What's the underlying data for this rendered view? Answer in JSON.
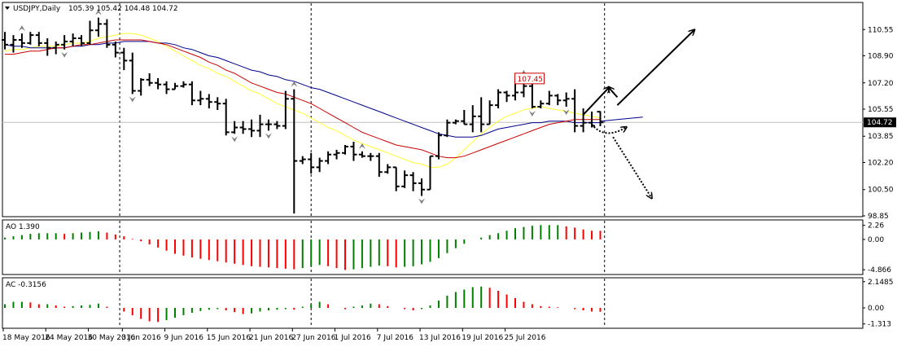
{
  "colors": {
    "background": "#ffffff",
    "frame": "#000000",
    "bar": "#000000",
    "ma_fast": "#ffff33",
    "ma_mid": "#cc0000",
    "ma_slow": "#00008b",
    "ao_up": "#008000",
    "ao_down": "#ff0000",
    "fractal": "#808080",
    "price_label_bg": "#000000",
    "price_label_text": "#ffffff",
    "marker_label": "#cc0000",
    "current_line": "#c0c0c0",
    "arrow": "#000000"
  },
  "chart_data": [
    {
      "type": "ohlc",
      "title": "USDJPY,Daily",
      "ohlc_readout": "105.39 105.42 104.48 104.72",
      "ylim": [
        98.85,
        112.2
      ],
      "y_ticks": [
        "110.55",
        "108.90",
        "107.20",
        "105.55",
        "103.85",
        "102.20",
        "100.50",
        "98.85"
      ],
      "current_price": "104.72",
      "current_value": 104.72,
      "marker_label": "107.45",
      "marker_value": 107.45,
      "marker_bar_index": 59,
      "x_ticks": [
        {
          "label": "18 May 2016",
          "index": 0
        },
        {
          "label": "24 May 2016",
          "index": 5
        },
        {
          "label": "30 May 2016",
          "index": 10
        },
        {
          "label": "3 Jun 2016",
          "index": 14
        },
        {
          "label": "9 Jun 2016",
          "index": 19
        },
        {
          "label": "15 Jun 2016",
          "index": 24
        },
        {
          "label": "21 Jun 2016",
          "index": 29
        },
        {
          "label": "27 Jun 2016",
          "index": 34
        },
        {
          "label": "1 Jul 2016",
          "index": 39
        },
        {
          "label": "7 Jul 2016",
          "index": 44
        },
        {
          "label": "13 Jul 2016",
          "index": 49
        },
        {
          "label": "19 Jul 2016",
          "index": 54
        },
        {
          "label": "25 Jul 2016",
          "index": 59
        }
      ],
      "bars": [
        [
          109.9,
          110.4,
          109.3,
          109.6
        ],
        [
          109.6,
          110.2,
          109.1,
          109.9
        ],
        [
          109.9,
          110.3,
          109.4,
          109.7
        ],
        [
          109.7,
          110.4,
          109.6,
          110.2
        ],
        [
          110.2,
          110.4,
          109.5,
          109.7
        ],
        [
          109.7,
          110.0,
          108.9,
          109.4
        ],
        [
          109.4,
          109.8,
          109.0,
          109.6
        ],
        [
          109.6,
          110.2,
          109.3,
          109.8
        ],
        [
          109.8,
          110.3,
          109.5,
          110.0
        ],
        [
          110.0,
          110.2,
          109.5,
          109.7
        ],
        [
          109.7,
          111.1,
          109.6,
          110.5
        ],
        [
          110.5,
          111.3,
          110.1,
          110.9
        ],
        [
          110.9,
          111.2,
          109.4,
          109.6
        ],
        [
          109.6,
          109.8,
          108.8,
          109.1
        ],
        [
          109.1,
          109.4,
          108.0,
          108.6
        ],
        [
          108.6,
          109.1,
          106.5,
          106.7
        ],
        [
          106.7,
          107.5,
          106.4,
          107.4
        ],
        [
          107.4,
          107.8,
          107.0,
          107.2
        ],
        [
          107.2,
          107.5,
          106.8,
          107.1
        ],
        [
          107.1,
          107.3,
          106.5,
          106.8
        ],
        [
          106.8,
          107.2,
          106.8,
          107.0
        ],
        [
          107.0,
          107.3,
          106.9,
          107.1
        ],
        [
          107.1,
          107.3,
          105.8,
          106.1
        ],
        [
          106.1,
          106.7,
          105.8,
          106.2
        ],
        [
          106.2,
          106.5,
          105.6,
          106.0
        ],
        [
          106.0,
          106.3,
          105.5,
          105.9
        ],
        [
          105.9,
          106.2,
          103.9,
          104.1
        ],
        [
          104.1,
          104.8,
          104.0,
          104.4
        ],
        [
          104.4,
          104.8,
          104.0,
          104.3
        ],
        [
          104.3,
          104.9,
          103.8,
          104.2
        ],
        [
          104.2,
          105.2,
          103.8,
          104.6
        ],
        [
          104.6,
          104.9,
          104.2,
          104.6
        ],
        [
          104.6,
          104.8,
          104.3,
          104.5
        ],
        [
          104.5,
          106.7,
          104.3,
          106.2
        ],
        [
          106.2,
          106.8,
          99.0,
          102.3
        ],
        [
          102.3,
          102.6,
          102.1,
          102.4
        ],
        [
          102.4,
          102.8,
          101.5,
          101.9
        ],
        [
          101.9,
          102.5,
          101.6,
          102.3
        ],
        [
          102.3,
          102.9,
          102.1,
          102.7
        ],
        [
          102.7,
          103.0,
          102.4,
          102.8
        ],
        [
          102.8,
          103.3,
          102.7,
          103.2
        ],
        [
          103.2,
          103.5,
          102.3,
          102.7
        ],
        [
          102.7,
          102.9,
          102.5,
          102.6
        ],
        [
          102.6,
          102.8,
          102.3,
          102.6
        ],
        [
          102.6,
          102.8,
          101.3,
          101.6
        ],
        [
          101.6,
          102.1,
          101.5,
          101.9
        ],
        [
          101.9,
          101.9,
          100.4,
          100.7
        ],
        [
          100.7,
          101.7,
          100.6,
          101.4
        ],
        [
          101.4,
          101.6,
          100.4,
          100.9
        ],
        [
          100.9,
          101.2,
          100.1,
          100.5
        ],
        [
          100.5,
          102.6,
          100.5,
          102.6
        ],
        [
          102.6,
          104.1,
          102.4,
          103.9
        ],
        [
          103.9,
          104.9,
          103.8,
          104.7
        ],
        [
          104.7,
          104.9,
          104.6,
          104.8
        ],
        [
          104.8,
          105.5,
          104.6,
          104.6
        ],
        [
          104.6,
          105.8,
          104.1,
          105.1
        ],
        [
          105.1,
          106.3,
          104.1,
          104.6
        ],
        [
          104.6,
          106.1,
          104.6,
          105.8
        ],
        [
          105.8,
          106.8,
          105.6,
          106.6
        ],
        [
          106.6,
          106.7,
          106.0,
          106.4
        ],
        [
          106.4,
          107.3,
          106.1,
          106.6
        ],
        [
          106.6,
          107.5,
          106.3,
          107.0
        ],
        [
          107.0,
          107.7,
          105.6,
          105.7
        ],
        [
          105.7,
          106.1,
          105.6,
          105.9
        ],
        [
          105.9,
          106.7,
          105.8,
          106.4
        ],
        [
          106.4,
          106.5,
          105.8,
          106.1
        ],
        [
          106.1,
          106.6,
          105.7,
          106.2
        ],
        [
          106.2,
          106.8,
          104.1,
          104.5
        ],
        [
          104.5,
          105.6,
          104.1,
          104.7
        ],
        [
          104.7,
          105.4,
          104.4,
          104.5
        ],
        [
          105.39,
          105.42,
          104.48,
          104.72
        ]
      ],
      "ma_fast": [
        109.2,
        109.3,
        109.3,
        109.4,
        109.5,
        109.5,
        109.5,
        109.6,
        109.7,
        109.7,
        109.8,
        110.0,
        110.1,
        110.2,
        110.3,
        110.3,
        110.2,
        110.0,
        109.8,
        109.5,
        109.2,
        108.9,
        108.6,
        108.3,
        108.1,
        107.8,
        107.6,
        107.3,
        107.0,
        106.7,
        106.5,
        106.2,
        105.9,
        105.7,
        105.5,
        105.3,
        105.0,
        104.7,
        104.4,
        104.2,
        103.9,
        103.6,
        103.4,
        103.2,
        103.0,
        102.8,
        102.6,
        102.4,
        102.2,
        102.1,
        101.9,
        101.9,
        102.1,
        102.5,
        103.0,
        103.5,
        104.0,
        104.4,
        104.8,
        105.1,
        105.3,
        105.5,
        105.6,
        105.7,
        105.6,
        105.5,
        105.4,
        105.3,
        105.2,
        105.1,
        105.0
      ],
      "ma_mid": [
        109.0,
        109.0,
        109.1,
        109.2,
        109.2,
        109.3,
        109.4,
        109.4,
        109.5,
        109.6,
        109.6,
        109.7,
        109.8,
        109.9,
        109.9,
        109.9,
        109.9,
        109.8,
        109.7,
        109.6,
        109.4,
        109.2,
        109.0,
        108.8,
        108.5,
        108.3,
        108.0,
        107.8,
        107.5,
        107.2,
        107.0,
        106.8,
        106.6,
        106.5,
        106.3,
        106.1,
        105.9,
        105.6,
        105.3,
        105.0,
        104.7,
        104.4,
        104.1,
        103.9,
        103.7,
        103.5,
        103.3,
        103.2,
        103.1,
        103.0,
        102.8,
        102.6,
        102.5,
        102.5,
        102.6,
        102.8,
        103.0,
        103.2,
        103.4,
        103.6,
        103.8,
        104.0,
        104.2,
        104.4,
        104.6,
        104.7,
        104.8,
        104.9,
        104.9,
        104.9,
        104.9
      ],
      "ma_slow": [
        109.6,
        109.5,
        109.5,
        109.4,
        109.4,
        109.4,
        109.4,
        109.4,
        109.5,
        109.5,
        109.6,
        109.6,
        109.7,
        109.7,
        109.8,
        109.8,
        109.8,
        109.8,
        109.7,
        109.7,
        109.6,
        109.4,
        109.3,
        109.1,
        108.9,
        108.8,
        108.6,
        108.4,
        108.2,
        108.0,
        107.9,
        107.7,
        107.6,
        107.4,
        107.3,
        107.1,
        106.9,
        106.8,
        106.6,
        106.4,
        106.2,
        106.0,
        105.8,
        105.6,
        105.4,
        105.2,
        105.0,
        104.8,
        104.6,
        104.4,
        104.2,
        104.0,
        103.9,
        103.8,
        103.8,
        103.8,
        103.9,
        104.1,
        104.3,
        104.4,
        104.5,
        104.6,
        104.7,
        104.7,
        104.8,
        104.8,
        104.8,
        104.7,
        104.7,
        104.7,
        104.7
      ],
      "ma_projection": [
        104.8,
        104.85,
        104.9,
        104.95,
        105.0,
        105.05
      ],
      "fractals_up": [
        2,
        11,
        34,
        42,
        61
      ],
      "fractals_down": [
        7,
        15,
        27,
        31,
        49,
        62,
        66
      ],
      "projection_arrows": [
        {
          "from": [
            68,
            105.2
          ],
          "to": [
            71,
            106.9
          ],
          "style": "solid"
        },
        {
          "from": [
            72,
            106.3
          ],
          "to": [
            71,
            106.9
          ],
          "style": "solid"
        },
        {
          "from": [
            72,
            105.8
          ],
          "to": [
            81,
            110.5
          ],
          "style": "solid"
        },
        {
          "from": [
            69,
            104.6
          ],
          "to": [
            73,
            104.4
          ],
          "style": "dotted",
          "via": [
            70.5,
            103.6
          ]
        },
        {
          "from": [
            71.5,
            103.8
          ],
          "to": [
            76,
            100.0
          ],
          "style": "dotted"
        }
      ],
      "vertical_lines": [
        13.5,
        36,
        70.5
      ]
    },
    {
      "type": "bar",
      "title": "AO 1.390",
      "ylim": [
        -5.5,
        3.0
      ],
      "y_ticks": [
        "2.26",
        "0.00",
        "-4.866"
      ],
      "values": [
        0.3,
        0.5,
        0.7,
        0.9,
        1.0,
        1.0,
        1.0,
        0.9,
        1.0,
        1.1,
        1.2,
        1.3,
        1.1,
        0.8,
        0.5,
        0.1,
        -0.3,
        -0.8,
        -1.3,
        -1.8,
        -2.3,
        -2.6,
        -2.9,
        -3.1,
        -3.3,
        -3.5,
        -3.7,
        -3.9,
        -4.1,
        -4.3,
        -4.4,
        -4.5,
        -4.6,
        -4.7,
        -4.8,
        -4.6,
        -4.3,
        -4.1,
        -4.3,
        -4.6,
        -4.9,
        -4.8,
        -4.6,
        -4.4,
        -4.2,
        -4.3,
        -4.5,
        -4.4,
        -4.3,
        -4.0,
        -3.6,
        -3.0,
        -2.2,
        -1.4,
        -0.7,
        0.0,
        0.3,
        0.7,
        1.0,
        1.4,
        1.8,
        2.0,
        2.2,
        2.3,
        2.3,
        2.3,
        2.1,
        1.9,
        1.6,
        1.4,
        1.39
      ]
    },
    {
      "type": "bar",
      "title": "AC -0.3156",
      "ylim": [
        -1.6,
        2.4
      ],
      "y_ticks": [
        "2.1485",
        "0.00",
        "-1.313"
      ],
      "values": [
        0.3,
        0.5,
        0.5,
        0.45,
        0.3,
        0.3,
        0.2,
        0.1,
        0.15,
        0.2,
        0.25,
        0.35,
        0.1,
        0.0,
        -0.3,
        -0.6,
        -0.9,
        -1.1,
        -1.15,
        -1.0,
        -0.8,
        -0.6,
        -0.4,
        -0.25,
        -0.15,
        -0.1,
        -0.2,
        -0.35,
        -0.5,
        -0.45,
        -0.3,
        -0.2,
        -0.15,
        -0.1,
        -0.15,
        0.1,
        0.3,
        0.5,
        0.3,
        0.0,
        -0.1,
        0.1,
        0.2,
        0.35,
        0.3,
        0.15,
        0.0,
        -0.1,
        -0.2,
        -0.1,
        0.2,
        0.6,
        1.0,
        1.3,
        1.5,
        1.7,
        1.75,
        1.65,
        1.4,
        1.1,
        0.8,
        0.5,
        0.3,
        0.15,
        0.1,
        0.05,
        0.0,
        -0.1,
        -0.2,
        -0.3,
        -0.3156
      ]
    }
  ]
}
